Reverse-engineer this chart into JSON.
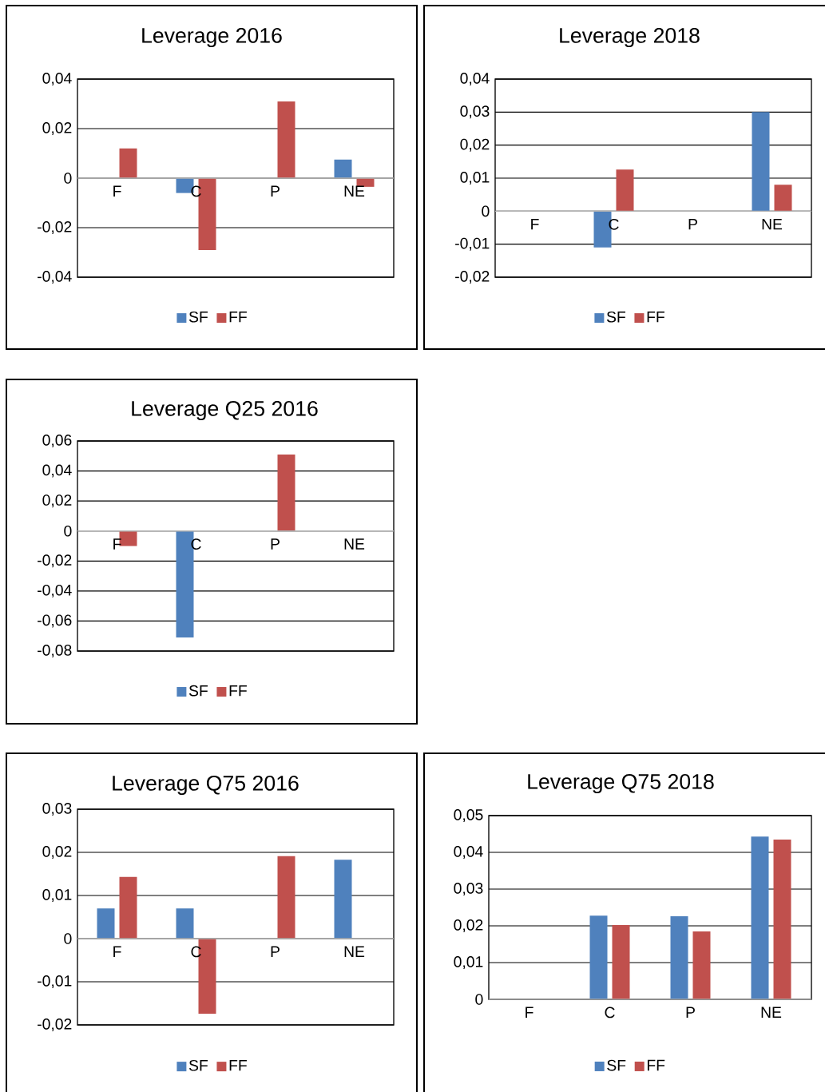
{
  "chart_data": [
    {
      "type": "bar",
      "title": "Leverage 2016",
      "categories": [
        "F",
        "C",
        "P",
        "NE"
      ],
      "series": [
        {
          "name": "SF",
          "color": "#4f81bd",
          "values": [
            0,
            -0.006,
            0,
            0.0075
          ]
        },
        {
          "name": "FF",
          "color": "#c0504d",
          "values": [
            0.012,
            -0.029,
            0.031,
            -0.0035
          ]
        }
      ],
      "ylim": [
        -0.04,
        0.04
      ],
      "yticks": [
        {
          "value": -0.04,
          "label": "-0,04"
        },
        {
          "value": -0.02,
          "label": "-0,02"
        },
        0,
        {
          "value": 0.02,
          "label": "0,02"
        },
        {
          "value": 0.04,
          "label": "0,04"
        }
      ],
      "grid": "y",
      "legend": "bottom"
    },
    {
      "type": "bar",
      "title": "Leverage 2018",
      "categories": [
        "F",
        "C",
        "P",
        "NE"
      ],
      "series": [
        {
          "name": "SF",
          "color": "#4f81bd",
          "values": [
            0,
            -0.011,
            0,
            0.03
          ]
        },
        {
          "name": "FF",
          "color": "#c0504d",
          "values": [
            0,
            0.0126,
            0,
            0.008
          ]
        }
      ],
      "ylim": [
        -0.02,
        0.04
      ],
      "yticks": [
        {
          "value": -0.02,
          "label": "-0,02"
        },
        {
          "value": -0.01,
          "label": "-0,01"
        },
        0,
        {
          "value": 0.01,
          "label": "0,01"
        },
        {
          "value": 0.02,
          "label": "0,02"
        },
        {
          "value": 0.03,
          "label": "0,03"
        },
        {
          "value": 0.04,
          "label": "0,04"
        }
      ],
      "grid": "y",
      "legend": "bottom"
    },
    {
      "type": "bar",
      "title": "Leverage  Q25 2016",
      "categories": [
        "F",
        "C",
        "P",
        "NE"
      ],
      "series": [
        {
          "name": "SF",
          "color": "#4f81bd",
          "values": [
            0,
            -0.071,
            0,
            0
          ]
        },
        {
          "name": "FF",
          "color": "#c0504d",
          "values": [
            -0.01,
            0,
            0.051,
            0
          ]
        }
      ],
      "ylim": [
        -0.08,
        0.06
      ],
      "yticks": [
        {
          "value": -0.08,
          "label": "-0,08"
        },
        {
          "value": -0.06,
          "label": "-0,06"
        },
        {
          "value": -0.04,
          "label": "-0,04"
        },
        {
          "value": -0.02,
          "label": "-0,02"
        },
        0,
        {
          "value": 0.02,
          "label": "0,02"
        },
        {
          "value": 0.04,
          "label": "0,04"
        },
        {
          "value": 0.06,
          "label": "0,06"
        }
      ],
      "grid": "y",
      "legend": "bottom"
    },
    {
      "type": "bar",
      "title": "Leverage Q75 2016",
      "categories": [
        "F",
        "C",
        "P",
        "NE"
      ],
      "series": [
        {
          "name": "SF",
          "color": "#4f81bd",
          "values": [
            0.007,
            0.007,
            0,
            0.0183
          ]
        },
        {
          "name": "FF",
          "color": "#c0504d",
          "values": [
            0.0143,
            -0.0174,
            0.0191,
            0
          ]
        }
      ],
      "ylim": [
        -0.02,
        0.03
      ],
      "yticks": [
        {
          "value": -0.02,
          "label": "-0,02"
        },
        {
          "value": -0.01,
          "label": "-0,01"
        },
        0,
        {
          "value": 0.01,
          "label": "0,01"
        },
        {
          "value": 0.02,
          "label": "0,02"
        },
        {
          "value": 0.03,
          "label": "0,03"
        }
      ],
      "grid": "y",
      "legend": "bottom"
    },
    {
      "type": "bar",
      "title": "Leverage Q75 2018",
      "categories": [
        "F",
        "C",
        "P",
        "NE"
      ],
      "series": [
        {
          "name": "SF",
          "color": "#4f81bd",
          "values": [
            0,
            0.0228,
            0.0226,
            0.0443
          ]
        },
        {
          "name": "FF",
          "color": "#c0504d",
          "values": [
            0,
            0.0202,
            0.0185,
            0.0435
          ]
        }
      ],
      "ylim": [
        0,
        0.05
      ],
      "yticks": [
        0,
        {
          "value": 0.01,
          "label": "0,01"
        },
        {
          "value": 0.02,
          "label": "0,02"
        },
        {
          "value": 0.03,
          "label": "0,03"
        },
        {
          "value": 0.04,
          "label": "0,04"
        },
        {
          "value": 0.05,
          "label": "0,05"
        }
      ],
      "grid": "y",
      "legend": "bottom"
    }
  ]
}
